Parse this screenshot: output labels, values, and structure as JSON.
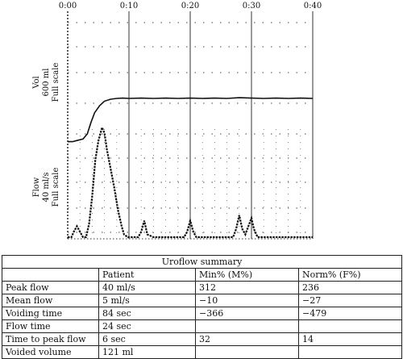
{
  "chart_data": {
    "type": "line",
    "x_ticks": [
      "0:00",
      "0:10",
      "0:20",
      "0:30",
      "0:40"
    ],
    "x_range_sec": [
      0,
      40
    ],
    "grid": true,
    "volume_panel": {
      "label_lines": [
        "Vol",
        "600 ml",
        "Full scale"
      ],
      "full_scale_ml": 600,
      "series": {
        "name": "Volume",
        "x_sec": [
          0,
          0.8,
          1.5,
          2.5,
          3.2,
          3.8,
          4.4,
          5.2,
          6,
          7,
          8,
          9,
          10,
          12,
          14,
          16,
          18,
          20,
          22,
          24,
          26,
          28,
          30,
          32,
          34,
          36,
          38,
          40
        ],
        "y_ml": [
          5,
          5,
          8,
          12,
          25,
          55,
          80,
          98,
          110,
          115,
          117,
          118,
          117,
          118,
          117,
          118,
          117,
          118,
          117,
          118,
          117,
          119,
          118,
          117,
          118,
          117,
          118,
          117
        ]
      }
    },
    "flow_panel": {
      "label_lines": [
        "Flow",
        "40 ml/s",
        "Full scale"
      ],
      "full_scale_mls": 40,
      "series": {
        "name": "Flow",
        "x_sec": [
          0,
          0.6,
          1.0,
          1.5,
          2.0,
          2.5,
          3.0,
          3.5,
          4.0,
          4.5,
          5.0,
          5.6,
          6.0,
          6.4,
          7.0,
          7.6,
          8.2,
          8.8,
          9.2,
          9.8,
          10.2,
          10.6,
          11.0,
          11.5,
          12.0,
          12.5,
          13.0,
          14.0,
          15.0,
          16.0,
          17.0,
          18.0,
          19.0,
          19.5,
          20.0,
          20.5,
          21.0,
          22.0,
          23.0,
          24.0,
          25.0,
          26.0,
          27.0,
          27.5,
          28.0,
          28.5,
          29.0,
          29.5,
          30.0,
          30.4,
          31.0,
          32.0,
          34.0,
          36.0,
          38.0,
          40.0
        ],
        "y_mls": [
          0,
          0,
          2,
          4,
          2,
          0,
          0,
          5,
          15,
          28,
          35,
          40,
          38,
          32,
          25,
          18,
          10,
          4,
          1,
          0,
          0,
          0,
          0,
          0,
          2,
          6,
          1,
          0,
          0,
          0,
          0,
          0,
          0,
          2,
          6,
          2,
          0,
          0,
          0,
          0,
          0,
          0,
          0,
          3,
          8,
          3,
          1,
          4,
          7,
          3,
          0,
          0,
          0,
          0,
          0,
          0
        ]
      }
    }
  },
  "table": {
    "title": "Uroflow summary",
    "headers": [
      "",
      "Patient",
      "Min% (M%)",
      "Norm% (F%)"
    ],
    "rows": [
      [
        "Peak flow",
        "40 ml/s",
        "312",
        "236"
      ],
      [
        "Mean flow",
        "5 ml/s",
        "−10",
        "−27"
      ],
      [
        "Voiding time",
        "84 sec",
        "−366",
        "−479"
      ],
      [
        "Flow time",
        "24 sec",
        "",
        ""
      ],
      [
        "Time to peak flow",
        "6 sec",
        "32",
        "14"
      ],
      [
        "Voided volume",
        "121 ml",
        "",
        ""
      ]
    ]
  }
}
